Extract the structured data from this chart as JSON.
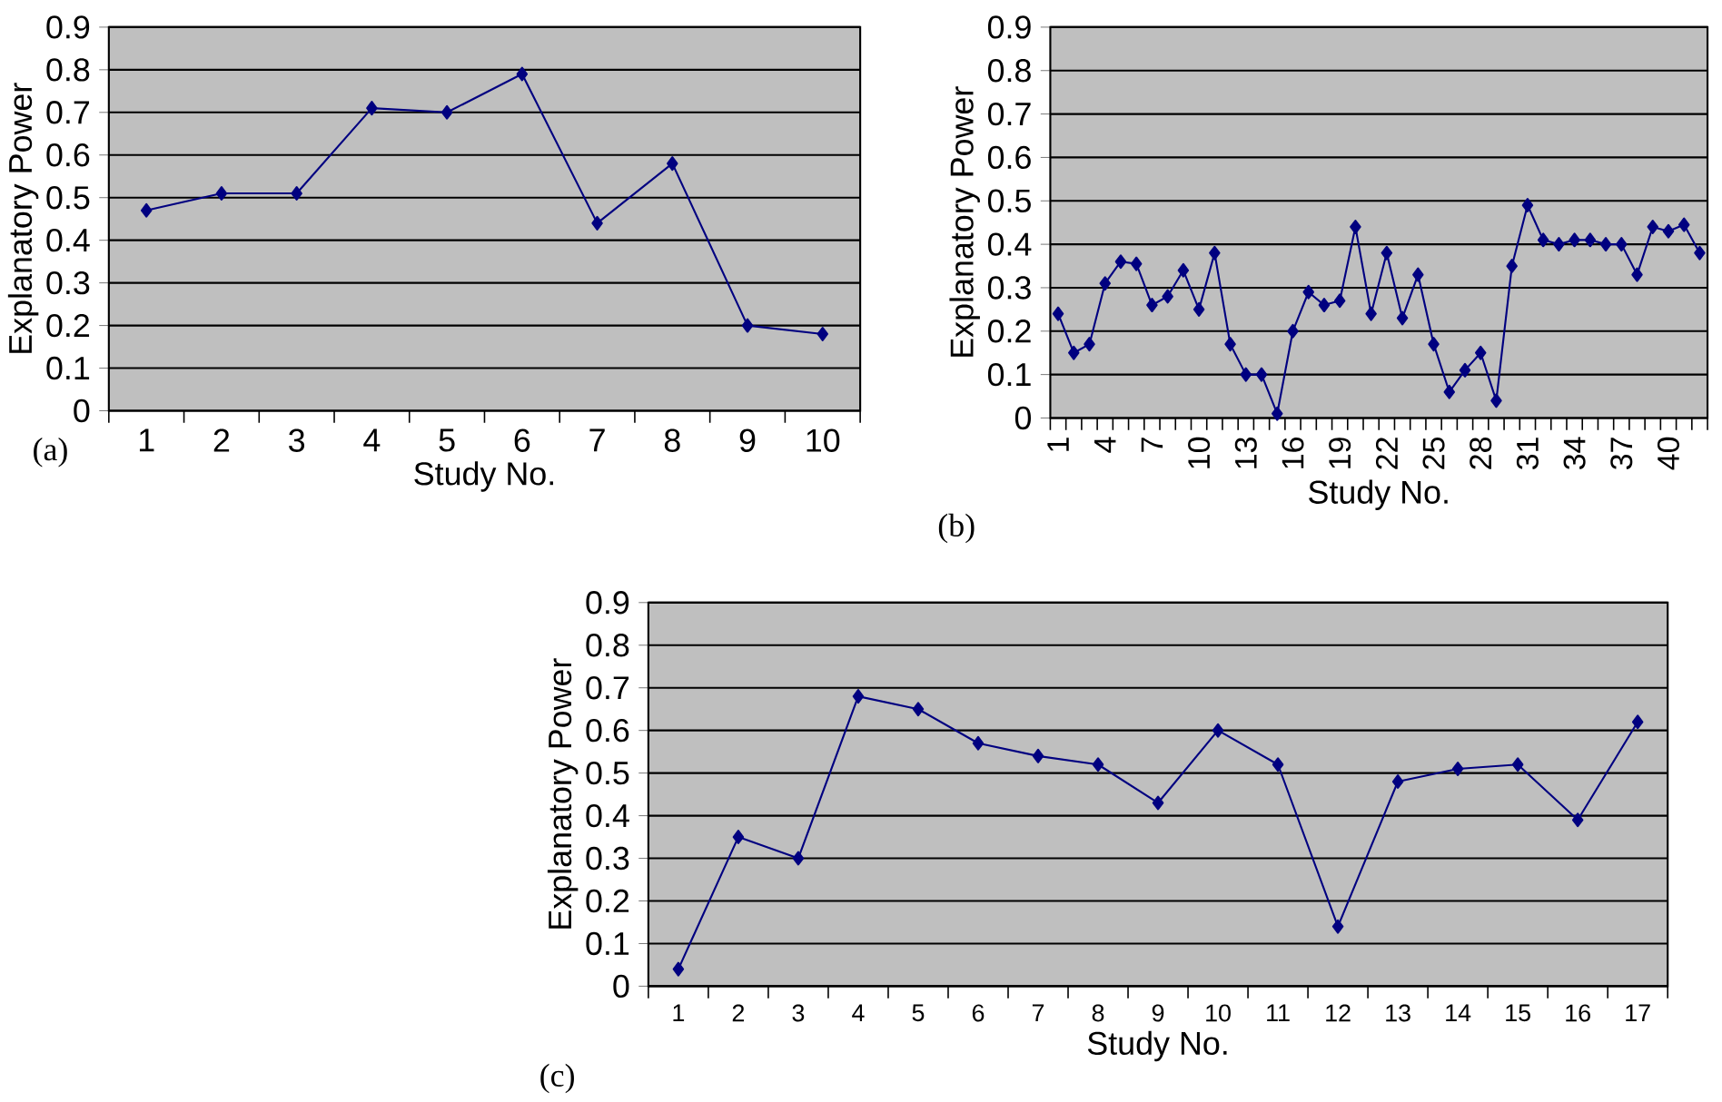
{
  "chart_data": [
    {
      "type": "line",
      "xlabel": "Study No.",
      "ylabel": "Explanatory Power",
      "annotations": [
        "(a)"
      ],
      "categories": [
        "1",
        "2",
        "3",
        "4",
        "5",
        "6",
        "7",
        "8",
        "9",
        "10"
      ],
      "values": [
        0.47,
        0.51,
        0.51,
        0.71,
        0.7,
        0.79,
        0.44,
        0.58,
        0.2,
        0.18
      ],
      "color": "#000080",
      "marker": "diamond",
      "grid": "y",
      "ylim": [
        0,
        0.9
      ],
      "yticks": [
        0,
        0.1,
        0.2,
        0.3,
        0.4,
        0.5,
        0.6,
        0.7,
        0.8,
        0.9
      ]
    },
    {
      "type": "line",
      "xlabel": "Study No.",
      "ylabel": "Explanatory Power",
      "annotations": [
        "(b)"
      ],
      "categories": [
        "1",
        null,
        null,
        "4",
        null,
        null,
        "7",
        null,
        null,
        "10",
        null,
        null,
        "13",
        null,
        null,
        "16",
        null,
        null,
        "19",
        null,
        null,
        "22",
        null,
        null,
        "25",
        null,
        null,
        "28",
        null,
        null,
        "31",
        null,
        null,
        "34",
        null,
        null,
        "37",
        null,
        null,
        "40",
        null,
        null
      ],
      "values": [
        0.24,
        0.15,
        0.17,
        0.31,
        0.36,
        0.355,
        0.26,
        0.28,
        0.34,
        0.25,
        0.38,
        0.17,
        0.1,
        0.1,
        0.01,
        0.2,
        0.29,
        0.26,
        0.27,
        0.44,
        0.24,
        0.38,
        0.23,
        0.33,
        0.17,
        0.06,
        0.11,
        0.15,
        0.04,
        0.35,
        0.49,
        0.41,
        0.4,
        0.41,
        0.41,
        0.4,
        0.4,
        0.33,
        0.44,
        0.43,
        0.445,
        0.38
      ],
      "color": "#000080",
      "marker": "diamond",
      "grid": "y",
      "ylim": [
        0,
        0.9
      ],
      "yticks": [
        0,
        0.1,
        0.2,
        0.3,
        0.4,
        0.5,
        0.6,
        0.7,
        0.8,
        0.9
      ]
    },
    {
      "type": "line",
      "xlabel": "Study No.",
      "ylabel": "Explanatory Power",
      "annotations": [
        "(c)"
      ],
      "categories": [
        "1",
        "2",
        "3",
        "4",
        "5",
        "6",
        "7",
        "8",
        "9",
        "10",
        "11",
        "12",
        "13",
        "14",
        "15",
        "16",
        "17"
      ],
      "values": [
        0.04,
        0.35,
        0.3,
        0.68,
        0.65,
        0.57,
        0.54,
        0.52,
        0.43,
        0.6,
        0.52,
        0.14,
        0.48,
        0.51,
        0.52,
        0.39,
        0.62
      ],
      "color": "#000080",
      "marker": "diamond",
      "grid": "y",
      "ylim": [
        0,
        0.9
      ],
      "yticks": [
        0,
        0.1,
        0.2,
        0.3,
        0.4,
        0.5,
        0.6,
        0.7,
        0.8,
        0.9
      ]
    }
  ]
}
